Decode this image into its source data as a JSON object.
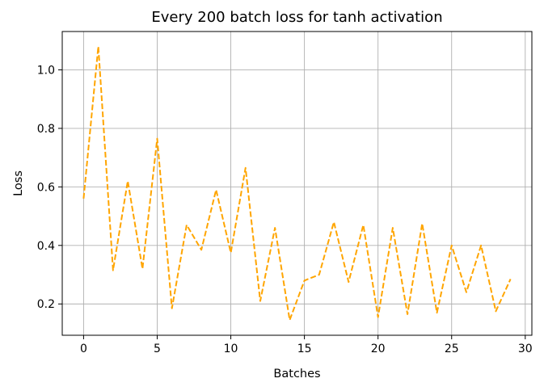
{
  "chart_data": {
    "type": "line",
    "title": "Every 200 batch loss for tanh activation",
    "xlabel": "Batches",
    "ylabel": "Loss",
    "xlim": [
      -1.45,
      30.45
    ],
    "ylim": [
      0.093,
      1.131
    ],
    "xticks": [
      0,
      5,
      10,
      15,
      20,
      25,
      30
    ],
    "yticks": [
      0.2,
      0.4,
      0.6,
      0.8,
      1.0
    ],
    "xtick_labels": [
      "0",
      "5",
      "10",
      "15",
      "20",
      "25",
      "30"
    ],
    "ytick_labels": [
      "0.2",
      "0.4",
      "0.6",
      "0.8",
      "1.0"
    ],
    "grid": true,
    "line_style": "dashed",
    "color": "#FFA500",
    "x": [
      0,
      1,
      2,
      3,
      4,
      5,
      6,
      7,
      8,
      9,
      10,
      11,
      12,
      13,
      14,
      15,
      16,
      17,
      18,
      19,
      20,
      21,
      22,
      23,
      24,
      25,
      26,
      27,
      28,
      29
    ],
    "values": [
      0.56,
      1.08,
      0.315,
      0.62,
      0.32,
      0.765,
      0.185,
      0.47,
      0.385,
      0.59,
      0.375,
      0.665,
      0.21,
      0.46,
      0.145,
      0.28,
      0.3,
      0.48,
      0.275,
      0.47,
      0.155,
      0.46,
      0.165,
      0.475,
      0.17,
      0.4,
      0.24,
      0.4,
      0.175,
      0.285
    ]
  }
}
